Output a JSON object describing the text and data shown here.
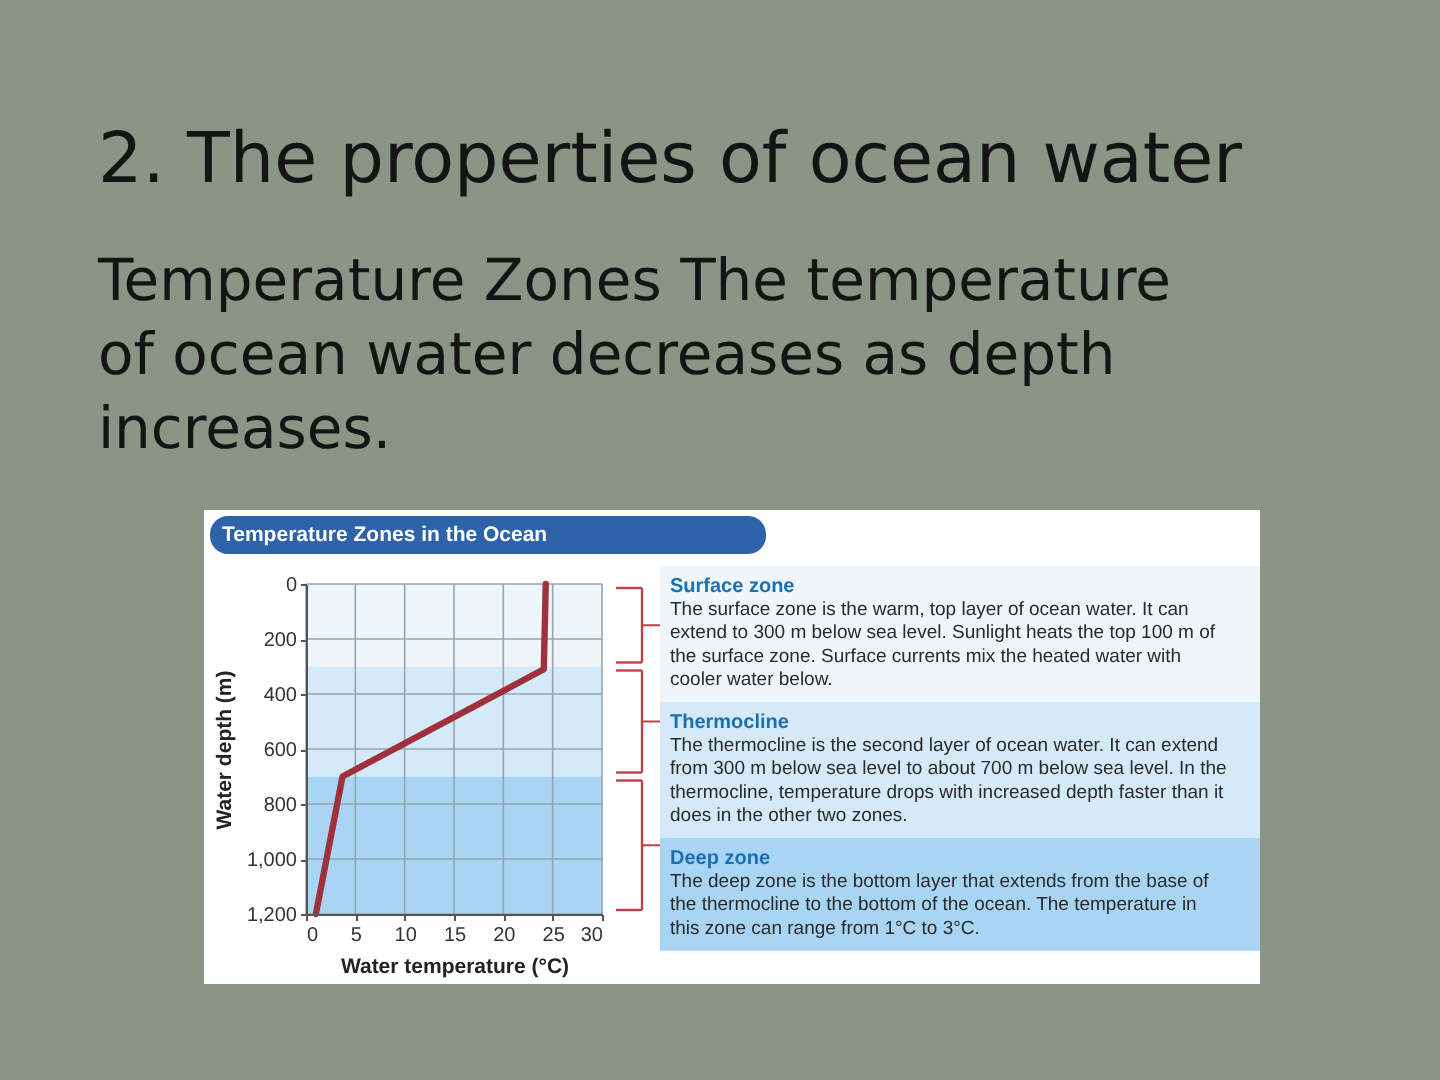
{
  "chart_data": {
    "type": "line",
    "title": "2. The properties of ocean water",
    "subtitle": "Temperature Zones The temperature of ocean water decreases as depth increases.",
    "xlabel": "Water temperature (°C)",
    "ylabel": "Water depth (m)",
    "annotations": [
      "Temperature Zones in the Ocean",
      "Surface zone",
      "The surface zone is the warm, top layer of ocean water. It can extend to 300 m below sea level. Sunlight heats the top 100 m of the surface zone. Surface currents mix the heated water with cooler water below.",
      "Thermocline",
      "The thermocline is the second layer of ocean water. It can extend from 300 m below sea level to about 700 m below sea level. In the thermocline, temperature drops with increased depth faster than it does in the other two zones.",
      "Deep zone",
      "The deep zone is the bottom layer that extends from the base of the thermocline to the bottom of the ocean. The temperature in this zone can range from 1°C to 3°C."
    ],
    "x": [
      24.3,
      24.1,
      3.7,
      1
    ],
    "values": [
      0,
      310,
      700,
      1200
    ],
    "color": "#a0303c",
    "xlim": [
      0,
      30
    ],
    "xticks": [
      0,
      5,
      10,
      15,
      20,
      25,
      30
    ],
    "ylim": [
      1200,
      0
    ],
    "yticks": [
      0,
      200,
      400,
      600,
      800,
      {
        "value": 1000,
        "label": "1,000"
      },
      {
        "value": 1200,
        "label": "1,200"
      }
    ],
    "grid": true,
    "bands": [
      {
        "axis": "y",
        "from": 0,
        "to": 300,
        "color": "#eef6fc"
      },
      {
        "axis": "y",
        "from": 300,
        "to": 700,
        "color": "#d5eaf8"
      },
      {
        "axis": "y",
        "from": 700,
        "to": 1200,
        "color": "#a8d5f3"
      }
    ]
  }
}
